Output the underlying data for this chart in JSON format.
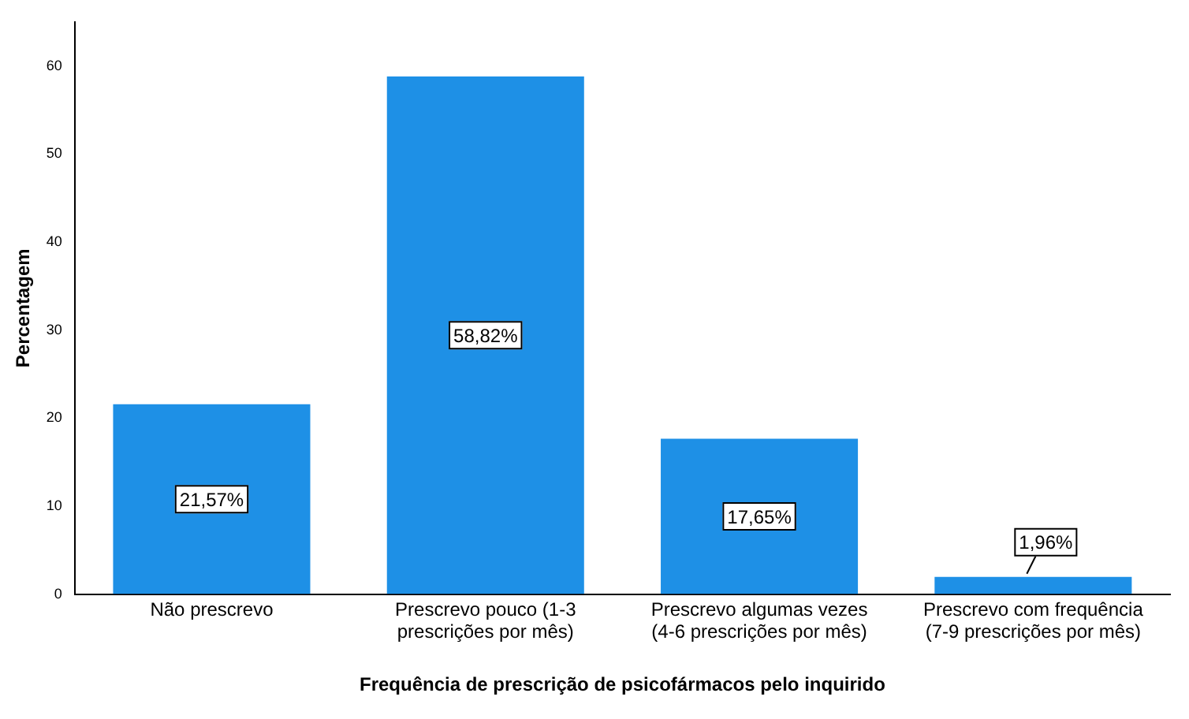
{
  "chart_data": {
    "type": "bar",
    "xlabel": "Frequência de prescrição de psicofármacos pelo inquirido",
    "ylabel": "Percentagem",
    "categories": [
      "Não prescrevo",
      "Prescrevo pouco (1-3 prescrições por mês)",
      "Prescrevo algumas vezes (4-6 prescrições por mês)",
      "Prescrevo com frequência (7-9 prescrições por mês)"
    ],
    "values": [
      21.57,
      58.82,
      17.65,
      1.96
    ],
    "color": "#1e90e6",
    "value_labels": [
      "21,57%",
      "58,82%",
      "17,65%",
      "1,96%"
    ],
    "ylim": [
      0,
      65
    ],
    "yticks": [
      0,
      10,
      20,
      30,
      40,
      50,
      60
    ],
    "grid": false,
    "legend": false
  }
}
